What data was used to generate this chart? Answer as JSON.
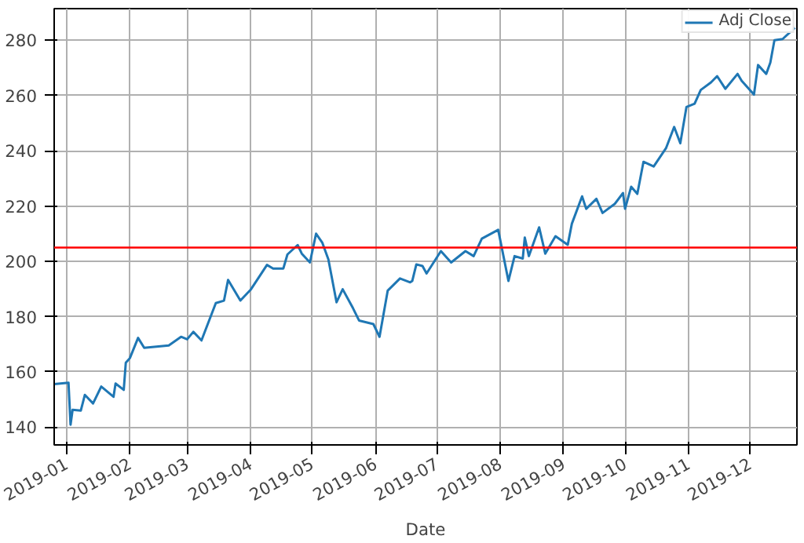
{
  "chart_data": {
    "type": "line",
    "xlabel": "Date",
    "x": [
      "2018-12-26",
      "2019-01-02",
      "2019-01-03",
      "2019-01-04",
      "2019-01-08",
      "2019-01-10",
      "2019-01-14",
      "2019-01-18",
      "2019-01-24",
      "2019-01-25",
      "2019-01-29",
      "2019-01-30",
      "2019-02-01",
      "2019-02-05",
      "2019-02-08",
      "2019-02-12",
      "2019-02-20",
      "2019-02-26",
      "2019-03-01",
      "2019-03-04",
      "2019-03-08",
      "2019-03-15",
      "2019-03-19",
      "2019-03-21",
      "2019-03-27",
      "2019-04-01",
      "2019-04-09",
      "2019-04-12",
      "2019-04-17",
      "2019-04-19",
      "2019-04-24",
      "2019-04-26",
      "2019-04-30",
      "2019-05-03",
      "2019-05-06",
      "2019-05-09",
      "2019-05-13",
      "2019-05-16",
      "2019-05-21",
      "2019-05-24",
      "2019-05-31",
      "2019-06-03",
      "2019-06-07",
      "2019-06-13",
      "2019-06-18",
      "2019-06-19",
      "2019-06-21",
      "2019-06-24",
      "2019-06-26",
      "2019-07-03",
      "2019-07-08",
      "2019-07-15",
      "2019-07-19",
      "2019-07-23",
      "2019-07-31",
      "2019-08-05",
      "2019-08-08",
      "2019-08-12",
      "2019-08-13",
      "2019-08-15",
      "2019-08-20",
      "2019-08-23",
      "2019-08-28",
      "2019-09-03",
      "2019-09-05",
      "2019-09-10",
      "2019-09-12",
      "2019-09-17",
      "2019-09-20",
      "2019-09-26",
      "2019-09-30",
      "2019-10-01",
      "2019-10-04",
      "2019-10-07",
      "2019-10-10",
      "2019-10-15",
      "2019-10-21",
      "2019-10-25",
      "2019-10-28",
      "2019-10-31",
      "2019-11-04",
      "2019-11-07",
      "2019-11-12",
      "2019-11-15",
      "2019-11-19",
      "2019-11-25",
      "2019-11-27",
      "2019-12-03",
      "2019-12-05",
      "2019-12-09",
      "2019-12-11",
      "2019-12-13",
      "2019-12-17",
      "2019-12-23"
    ],
    "series": [
      {
        "name": "Adj Close",
        "color": "#1f77b4",
        "values": [
          155.6,
          156.1,
          140.9,
          146.3,
          146,
          151.7,
          148.6,
          154.7,
          151,
          155.8,
          153.5,
          163.3,
          165,
          172.3,
          168.7,
          169,
          169.6,
          172.7,
          171.8,
          174.5,
          171.4,
          184.9,
          185.8,
          193.3,
          185.8,
          189.7,
          198.7,
          197.4,
          197.4,
          202.5,
          205.9,
          202.8,
          199.6,
          210,
          206.8,
          200.7,
          185.2,
          189.9,
          183.1,
          178.6,
          177.3,
          172.7,
          189.4,
          193.8,
          192.4,
          192.9,
          198.9,
          198.3,
          195.6,
          203.7,
          199.6,
          203.7,
          201.9,
          208.2,
          211.4,
          192.9,
          201.9,
          201,
          208.6,
          201.9,
          212.3,
          202.8,
          209.1,
          206,
          213.6,
          223.5,
          219,
          222.6,
          217.5,
          220.8,
          224.7,
          219,
          227,
          224.4,
          236,
          234.3,
          240.9,
          248.6,
          242.7,
          255.8,
          257,
          262,
          264.7,
          267,
          262.4,
          267.8,
          265.3,
          260.3,
          271,
          267.8,
          271.9,
          280,
          280.4,
          284.5
        ]
      }
    ],
    "xlim": [
      "2018-12-26",
      "2019-12-24"
    ],
    "xticks": [
      "2019-01",
      "2019-02",
      "2019-03",
      "2019-04",
      "2019-05",
      "2019-06",
      "2019-07",
      "2019-08",
      "2019-09",
      "2019-10",
      "2019-11",
      "2019-12"
    ],
    "ylim": [
      133.6,
      291.4
    ],
    "yticks": [
      140,
      160,
      180,
      200,
      220,
      240,
      260,
      280
    ],
    "ref_lines": [
      {
        "axis": "y",
        "value": 205,
        "color": "#ff0000"
      }
    ],
    "grid": true,
    "legend": "top right"
  }
}
